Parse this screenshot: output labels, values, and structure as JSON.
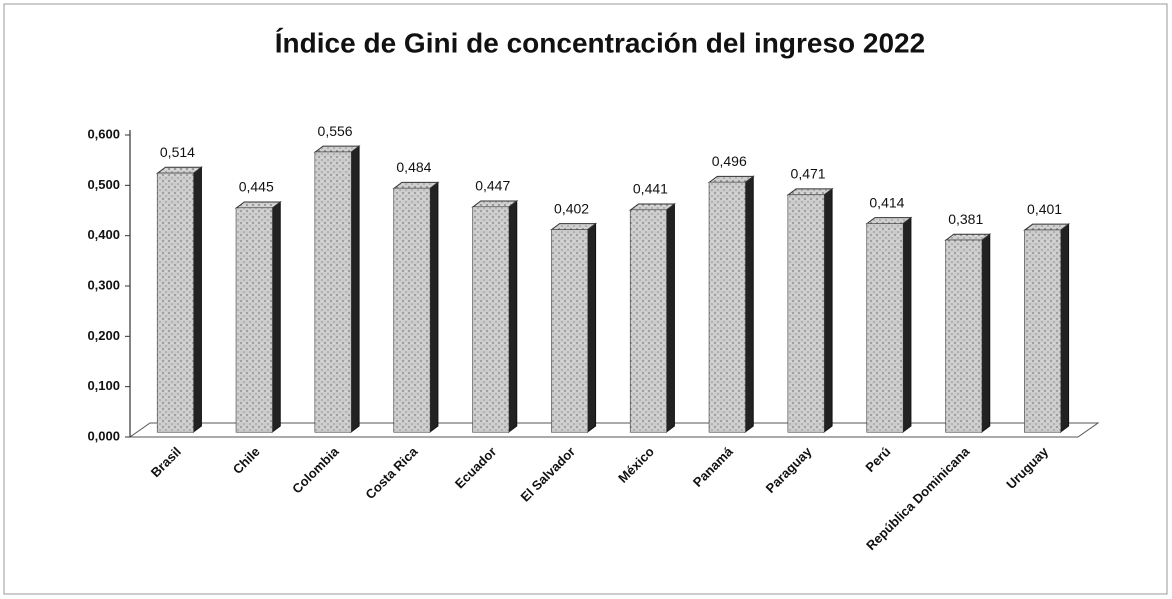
{
  "chart_data": {
    "type": "bar",
    "title": "Índice de Gini de concentración del ingreso 2022",
    "categories": [
      "Brasil",
      "Chile",
      "Colombia",
      "Costa Rica",
      "Ecuador",
      "El Salvador",
      "México",
      "Panamá",
      "Paraguay",
      "Perú",
      "República Dominicana",
      "Uruguay"
    ],
    "values": [
      0.514,
      0.445,
      0.556,
      0.484,
      0.447,
      0.402,
      0.441,
      0.496,
      0.471,
      0.414,
      0.381,
      0.401
    ],
    "value_labels": [
      "0,514",
      "0,445",
      "0,556",
      "0,484",
      "0,447",
      "0,402",
      "0,441",
      "0,496",
      "0,471",
      "0,414",
      "0,381",
      "0,401"
    ],
    "color": "#bdbdbd",
    "ylim": [
      0,
      0.6
    ],
    "yticks": [
      {
        "value": 0,
        "label": "0,000"
      },
      {
        "value": 0.1,
        "label": "0,100"
      },
      {
        "value": 0.2,
        "label": "0,200"
      },
      {
        "value": 0.3,
        "label": "0,300"
      },
      {
        "value": 0.4,
        "label": "0,400"
      },
      {
        "value": 0.5,
        "label": "0,500"
      },
      {
        "value": 0.6,
        "label": "0,600"
      }
    ],
    "grid": false
  }
}
